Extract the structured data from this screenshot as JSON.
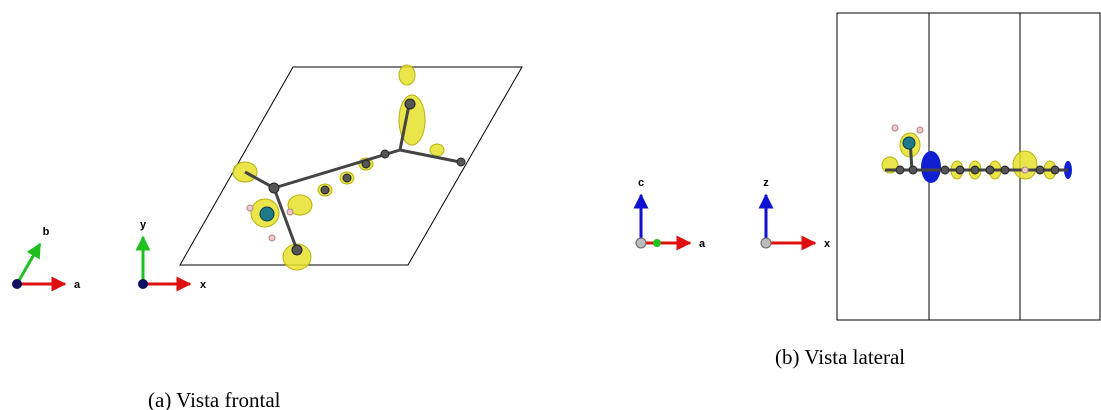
{
  "subfigures": [
    {
      "caption": "(a) Vista frontal",
      "axes": [
        {
          "horizontal": "a",
          "vertical": "b"
        },
        {
          "horizontal": "x",
          "vertical": "y"
        }
      ]
    },
    {
      "caption": "(b) Vista lateral",
      "axes": [
        {
          "horizontal": "a",
          "vertical": "c"
        },
        {
          "horizontal": "x",
          "vertical": "z"
        }
      ]
    }
  ]
}
